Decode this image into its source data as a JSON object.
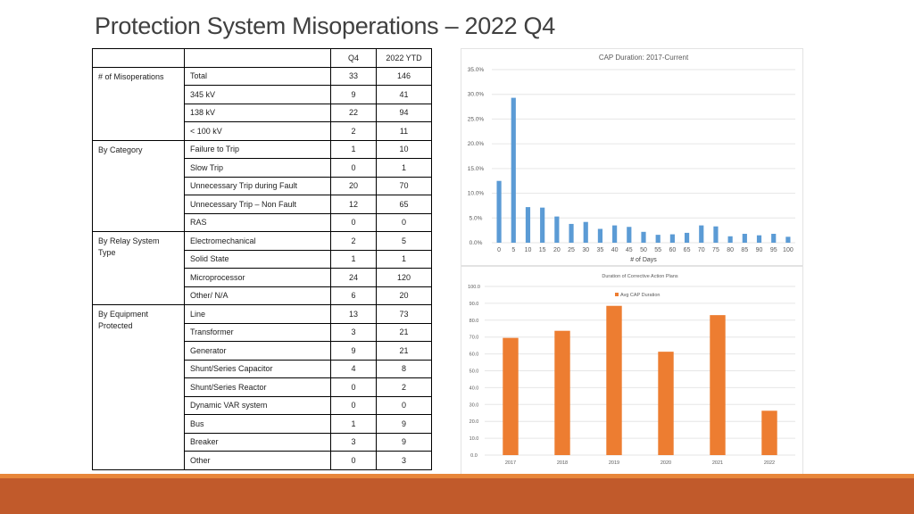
{
  "slide": {
    "title": "Protection System Misoperations – 2022 Q4"
  },
  "table": {
    "headers": [
      "",
      "",
      "Q4",
      "2022 YTD"
    ],
    "groups": [
      {
        "label": "# of Misoperations",
        "rows": [
          {
            "label": "Total",
            "q4": "33",
            "ytd": "146"
          },
          {
            "label": "345 kV",
            "q4": "9",
            "ytd": "41"
          },
          {
            "label": "138 kV",
            "q4": "22",
            "ytd": "94"
          },
          {
            "label": "< 100 kV",
            "q4": "2",
            "ytd": "11"
          }
        ]
      },
      {
        "label": "By Category",
        "rows": [
          {
            "label": "Failure to Trip",
            "q4": "1",
            "ytd": "10"
          },
          {
            "label": "Slow Trip",
            "q4": "0",
            "ytd": "1"
          },
          {
            "label": "Unnecessary Trip during Fault",
            "q4": "20",
            "ytd": "70"
          },
          {
            "label": "Unnecessary Trip – Non Fault",
            "q4": "12",
            "ytd": "65"
          },
          {
            "label": "RAS",
            "q4": "0",
            "ytd": "0"
          }
        ]
      },
      {
        "label": "By Relay System Type",
        "rows": [
          {
            "label": "Electromechanical",
            "q4": "2",
            "ytd": "5"
          },
          {
            "label": "Solid State",
            "q4": "1",
            "ytd": "1"
          },
          {
            "label": "Microprocessor",
            "q4": "24",
            "ytd": "120"
          },
          {
            "label": "Other/ N/A",
            "q4": "6",
            "ytd": "20"
          }
        ]
      },
      {
        "label": "By Equipment Protected",
        "rows": [
          {
            "label": "Line",
            "q4": "13",
            "ytd": "73"
          },
          {
            "label": "Transformer",
            "q4": "3",
            "ytd": "21"
          },
          {
            "label": "Generator",
            "q4": "9",
            "ytd": "21"
          },
          {
            "label": "Shunt/Series Capacitor",
            "q4": "4",
            "ytd": "8"
          },
          {
            "label": "Shunt/Series Reactor",
            "q4": "0",
            "ytd": "2"
          },
          {
            "label": "Dynamic VAR system",
            "q4": "0",
            "ytd": "0"
          },
          {
            "label": "Bus",
            "q4": "1",
            "ytd": "9"
          },
          {
            "label": "Breaker",
            "q4": "3",
            "ytd": "9"
          },
          {
            "label": "Other",
            "q4": "0",
            "ytd": "3"
          }
        ]
      }
    ]
  },
  "chart_data": [
    {
      "type": "bar",
      "title": "CAP Duration: 2017-Current",
      "xlabel": "# of Days",
      "ylabel": "",
      "categories": [
        "0",
        "5",
        "10",
        "15",
        "20",
        "25",
        "30",
        "35",
        "40",
        "45",
        "50",
        "55",
        "60",
        "65",
        "70",
        "75",
        "80",
        "85",
        "90",
        "95",
        "100"
      ],
      "values": [
        12.5,
        29.3,
        7.2,
        7.1,
        5.3,
        3.8,
        4.2,
        2.8,
        3.5,
        3.2,
        2.2,
        1.6,
        1.7,
        2.0,
        3.5,
        3.3,
        1.3,
        1.8,
        1.5,
        1.8,
        1.2
      ],
      "ylim": [
        0,
        35
      ],
      "yticks": [
        "0.0%",
        "5.0%",
        "10.0%",
        "15.0%",
        "20.0%",
        "25.0%",
        "30.0%",
        "35.0%"
      ],
      "grid": true,
      "color": "#5b9bd5"
    },
    {
      "type": "bar",
      "title": "Duration of Corrective Action Plans",
      "xlabel": "",
      "ylabel": "",
      "categories": [
        "2017",
        "2018",
        "2019",
        "2020",
        "2021",
        "2022"
      ],
      "series": [
        {
          "name": "Avg CAP Duration",
          "values": [
            69.5,
            73.7,
            88.5,
            61.3,
            83.0,
            26.3
          ]
        }
      ],
      "ylim": [
        0,
        100
      ],
      "yticks": [
        "0.0",
        "10.0",
        "20.0",
        "30.0",
        "40.0",
        "50.0",
        "60.0",
        "70.0",
        "80.0",
        "90.0",
        "100.0"
      ],
      "legend": "top-center",
      "grid": true,
      "color": "#ed7d31"
    }
  ]
}
